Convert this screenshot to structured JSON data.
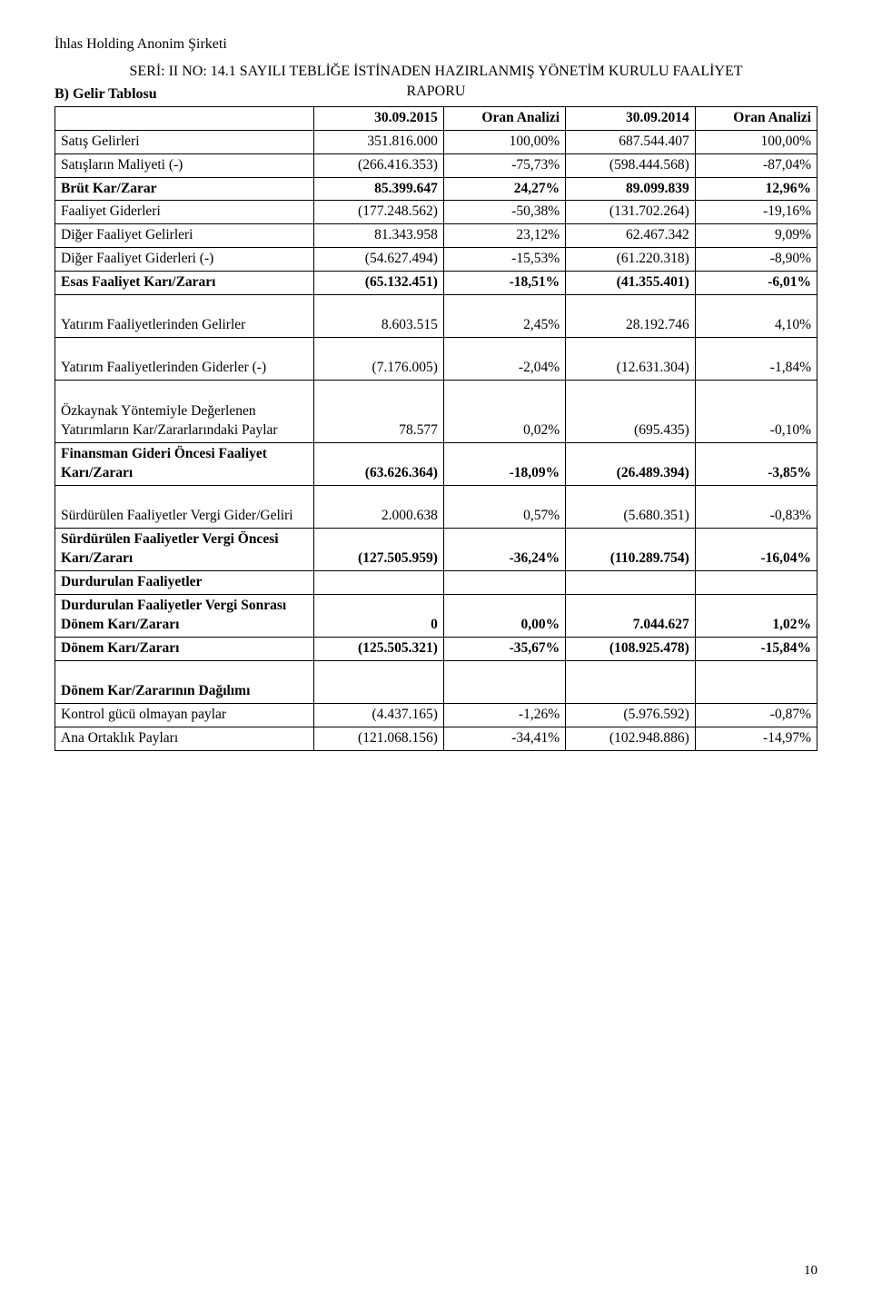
{
  "company_name": "İhlas Holding Anonim Şirketi",
  "report_title_line1": "SERİ: II NO: 14.1 SAYILI TEBLİĞE İSTİNADEN HAZIRLANMIŞ YÖNETİM KURULU FAALİYET",
  "report_title_line2": "RAPORU",
  "section_title": "B) Gelir Tablosu",
  "page_number": "10",
  "table": {
    "headers": {
      "col1": "",
      "col2": "30.09.2015",
      "col3": "Oran Analizi",
      "col4": "30.09.2014",
      "col5": "Oran Analizi"
    },
    "rows": [
      {
        "label": "Satış Gelirleri",
        "v1": "351.816.000",
        "p1": "100,00%",
        "v2": "687.544.407",
        "p2": "100,00%",
        "bold": false
      },
      {
        "label": "Satışların Maliyeti (-)",
        "v1": "(266.416.353)",
        "p1": "-75,73%",
        "v2": "(598.444.568)",
        "p2": "-87,04%",
        "bold": false
      },
      {
        "label": "Brüt Kar/Zarar",
        "v1": "85.399.647",
        "p1": "24,27%",
        "v2": "89.099.839",
        "p2": "12,96%",
        "bold": true
      },
      {
        "label": "Faaliyet Giderleri",
        "v1": "(177.248.562)",
        "p1": "-50,38%",
        "v2": "(131.702.264)",
        "p2": "-19,16%",
        "bold": false
      },
      {
        "label": "Diğer Faaliyet Gelirleri",
        "v1": "81.343.958",
        "p1": "23,12%",
        "v2": "62.467.342",
        "p2": "9,09%",
        "bold": false
      },
      {
        "label": "Diğer Faaliyet Giderleri (-)",
        "v1": "(54.627.494)",
        "p1": "-15,53%",
        "v2": "(61.220.318)",
        "p2": "-8,90%",
        "bold": false
      },
      {
        "label": "Esas Faaliyet Karı/Zararı",
        "v1": "(65.132.451)",
        "p1": "-18,51%",
        "v2": "(41.355.401)",
        "p2": "-6,01%",
        "bold": true
      },
      {
        "label": "Yatırım Faaliyetlerinden Gelirler",
        "v1": "8.603.515",
        "p1": "2,45%",
        "v2": "28.192.746",
        "p2": "4,10%",
        "bold": false,
        "tall": true
      },
      {
        "label": "Yatırım Faaliyetlerinden Giderler (-)",
        "v1": "(7.176.005)",
        "p1": "-2,04%",
        "v2": "(12.631.304)",
        "p2": "-1,84%",
        "bold": false,
        "tall": true
      },
      {
        "label": "Özkaynak Yöntemiyle Değerlenen Yatırımların Kar/Zararlarındaki Paylar",
        "v1": "78.577",
        "p1": "0,02%",
        "v2": "(695.435)",
        "p2": "-0,10%",
        "bold": false,
        "tall3": true
      },
      {
        "label": "Finansman Gideri Öncesi Faaliyet Karı/Zararı",
        "v1": "(63.626.364)",
        "p1": "-18,09%",
        "v2": "(26.489.394)",
        "p2": "-3,85%",
        "bold": true,
        "tall": true
      },
      {
        "label": "Sürdürülen Faaliyetler Vergi Gider/Geliri",
        "v1": "2.000.638",
        "p1": "0,57%",
        "v2": "(5.680.351)",
        "p2": "-0,83%",
        "bold": false,
        "tall": true
      },
      {
        "label": "Sürdürülen Faaliyetler Vergi Öncesi Karı/Zararı",
        "v1": "(127.505.959)",
        "p1": "-36,24%",
        "v2": "(110.289.754)",
        "p2": "-16,04%",
        "bold": true,
        "tall": true
      },
      {
        "label": "Durdurulan Faaliyetler",
        "v1": "",
        "p1": "",
        "v2": "",
        "p2": "",
        "bold": true
      },
      {
        "label": "Durdurulan Faaliyetler Vergi Sonrası Dönem Karı/Zararı",
        "v1": "0",
        "p1": "0,00%",
        "v2": "7.044.627",
        "p2": "1,02%",
        "bold": true,
        "tall": true
      },
      {
        "label": "Dönem Karı/Zararı",
        "v1": "(125.505.321)",
        "p1": "-35,67%",
        "v2": "(108.925.478)",
        "p2": "-15,84%",
        "bold": true
      },
      {
        "label": "Dönem Kar/Zararının Dağılımı",
        "v1": "",
        "p1": "",
        "v2": "",
        "p2": "",
        "bold": true,
        "tall": true
      },
      {
        "label": "Kontrol gücü olmayan paylar",
        "v1": "(4.437.165)",
        "p1": "-1,26%",
        "v2": "(5.976.592)",
        "p2": "-0,87%",
        "bold": false
      },
      {
        "label": "Ana Ortaklık Payları",
        "v1": "(121.068.156)",
        "p1": "-34,41%",
        "v2": "(102.948.886)",
        "p2": "-14,97%",
        "bold": false
      }
    ]
  }
}
